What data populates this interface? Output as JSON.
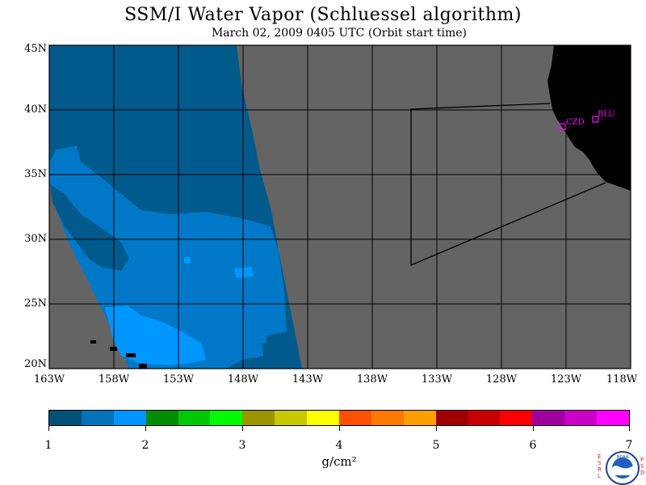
{
  "header": {
    "title": "SSM/I Water Vapor (Schluessel algorithm)",
    "subtitle": "March 02, 2009  0405 UTC  (Orbit start time)"
  },
  "map": {
    "lat_labels": [
      "45N",
      "40N",
      "35N",
      "30N",
      "25N",
      "20N"
    ],
    "lon_labels": [
      "163W",
      "158W",
      "153W",
      "148W",
      "143W",
      "138W",
      "133W",
      "128W",
      "123W",
      "118W"
    ],
    "stations": [
      {
        "id": "CZD",
        "color": "#ff00ff"
      },
      {
        "id": "BLU",
        "color": "#ff00ff"
      }
    ],
    "colors": {
      "no_data": "#646464",
      "land": "#000000",
      "grid": "#000000",
      "wv_low": "#005a8c",
      "wv_mid": "#0078c8",
      "wv_high": "#0096ff"
    }
  },
  "colorbar": {
    "tick_labels": [
      "1",
      "2",
      "3",
      "4",
      "5",
      "6",
      "7"
    ],
    "units": "g/cm²",
    "colors": [
      "#005078",
      "#0073b9",
      "#0096ff",
      "#008c00",
      "#00c800",
      "#00fa00",
      "#9b9600",
      "#c8c800",
      "#ffff00",
      "#ff5000",
      "#ff7800",
      "#ffa000",
      "#a00000",
      "#c80000",
      "#ff0000",
      "#a000a0",
      "#c800c8",
      "#ff00ff"
    ]
  },
  "logo": {
    "left_letters": "ESRL",
    "right_letters": "PSD",
    "center_text": "NOAA"
  }
}
